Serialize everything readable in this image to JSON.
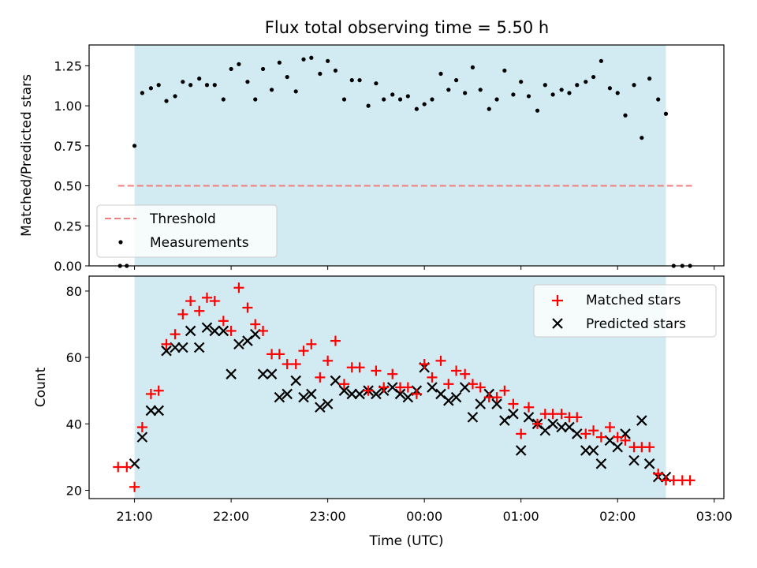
{
  "title": "Flux total observing time = 5.50 h",
  "chart_data": [
    {
      "type": "scatter",
      "ylabel": "Matched/Predicted stars",
      "xlabel": "",
      "xlim_hours": [
        20.53,
        27.1
      ],
      "ylim": [
        0,
        1.38
      ],
      "yticks": [
        0.0,
        0.25,
        0.5,
        0.75,
        1.0,
        1.25
      ],
      "yticklabels": [
        "0.00",
        "0.25",
        "0.50",
        "0.75",
        "1.00",
        "1.25"
      ],
      "shaded_span_hours": [
        21.0,
        26.5
      ],
      "shade_color": "#add8e6",
      "legend_position": "lower-left",
      "threshold": {
        "name": "Threshold",
        "value": 0.5,
        "x_range_hours": [
          20.83,
          26.77
        ],
        "color": "#f08080",
        "style": "dashed"
      },
      "measurements": {
        "name": "Measurements",
        "color": "#000000",
        "x_hours": [
          20.85,
          20.92,
          21.0,
          21.08,
          21.17,
          21.25,
          21.33,
          21.42,
          21.5,
          21.58,
          21.67,
          21.75,
          21.83,
          21.92,
          22.0,
          22.08,
          22.17,
          22.25,
          22.33,
          22.42,
          22.5,
          22.58,
          22.67,
          22.75,
          22.83,
          22.92,
          23.0,
          23.08,
          23.17,
          23.25,
          23.33,
          23.42,
          23.5,
          23.58,
          23.67,
          23.75,
          23.83,
          23.92,
          24.0,
          24.08,
          24.17,
          24.25,
          24.33,
          24.42,
          24.5,
          24.58,
          24.67,
          24.75,
          24.83,
          24.92,
          25.0,
          25.08,
          25.17,
          25.25,
          25.33,
          25.42,
          25.5,
          25.58,
          25.67,
          25.75,
          25.83,
          25.92,
          26.0,
          26.08,
          26.17,
          26.25,
          26.33,
          26.42,
          26.5,
          26.58,
          26.67,
          26.75
        ],
        "y": [
          0.0,
          0.0,
          0.75,
          1.08,
          1.11,
          1.13,
          1.03,
          1.06,
          1.15,
          1.13,
          1.17,
          1.13,
          1.13,
          1.04,
          1.23,
          1.26,
          1.15,
          1.04,
          1.23,
          1.1,
          1.27,
          1.18,
          1.09,
          1.29,
          1.3,
          1.2,
          1.28,
          1.22,
          1.04,
          1.16,
          1.16,
          1.0,
          1.14,
          1.04,
          1.07,
          1.04,
          1.06,
          0.98,
          1.01,
          1.04,
          1.2,
          1.1,
          1.16,
          1.08,
          1.24,
          1.1,
          0.98,
          1.04,
          1.22,
          1.07,
          1.15,
          1.06,
          0.97,
          1.13,
          1.07,
          1.1,
          1.08,
          1.13,
          1.15,
          1.18,
          1.28,
          1.11,
          1.08,
          0.94,
          1.13,
          0.8,
          1.17,
          1.04,
          0.95,
          0.0,
          0.0,
          0.0
        ]
      }
    },
    {
      "type": "scatter",
      "ylabel": "Count",
      "xlabel": "Time (UTC)",
      "xlim_hours": [
        20.53,
        27.1
      ],
      "ylim": [
        17.5,
        84.5
      ],
      "yticks": [
        20,
        40,
        60,
        80
      ],
      "yticklabels": [
        "20",
        "40",
        "60",
        "80"
      ],
      "xticks_hours": [
        21,
        22,
        23,
        24,
        25,
        26,
        27
      ],
      "xticklabels": [
        "21:00",
        "22:00",
        "23:00",
        "00:00",
        "01:00",
        "02:00",
        "03:00"
      ],
      "shaded_span_hours": [
        21.0,
        26.5
      ],
      "shade_color": "#add8e6",
      "legend_position": "top-right",
      "series": [
        {
          "name": "Matched stars",
          "marker": "plus",
          "color": "#ff0000",
          "x_hours": [
            20.83,
            20.92,
            21.0,
            21.08,
            21.17,
            21.25,
            21.33,
            21.42,
            21.5,
            21.58,
            21.67,
            21.75,
            21.83,
            21.92,
            22.0,
            22.08,
            22.17,
            22.25,
            22.33,
            22.42,
            22.5,
            22.58,
            22.67,
            22.75,
            22.83,
            22.92,
            23.0,
            23.08,
            23.17,
            23.25,
            23.33,
            23.42,
            23.5,
            23.58,
            23.67,
            23.75,
            23.83,
            23.92,
            24.0,
            24.08,
            24.17,
            24.25,
            24.33,
            24.42,
            24.5,
            24.58,
            24.67,
            24.75,
            24.83,
            24.92,
            25.0,
            25.08,
            25.17,
            25.25,
            25.33,
            25.42,
            25.5,
            25.58,
            25.67,
            25.75,
            25.83,
            25.92,
            26.0,
            26.08,
            26.17,
            26.25,
            26.33,
            26.42,
            26.5,
            26.58,
            26.67,
            26.75
          ],
          "y": [
            27,
            27,
            21,
            39,
            49,
            50,
            64,
            67,
            73,
            77,
            74,
            78,
            77,
            71,
            68,
            81,
            75,
            70,
            68,
            61,
            61,
            58,
            58,
            62,
            64,
            54,
            59,
            65,
            52,
            57,
            57,
            50,
            56,
            51,
            55,
            51,
            51,
            49,
            58,
            54,
            59,
            52,
            56,
            55,
            52,
            51,
            48,
            48,
            50,
            46,
            37,
            45,
            40,
            43,
            43,
            43,
            42,
            42,
            37,
            38,
            36,
            39,
            36,
            35,
            33,
            33,
            33,
            25,
            23,
            23,
            23,
            23
          ]
        },
        {
          "name": "Predicted stars",
          "marker": "x",
          "color": "#000000",
          "x_hours": [
            21.0,
            21.08,
            21.17,
            21.25,
            21.33,
            21.42,
            21.5,
            21.58,
            21.67,
            21.75,
            21.83,
            21.92,
            22.0,
            22.08,
            22.17,
            22.25,
            22.33,
            22.42,
            22.5,
            22.58,
            22.67,
            22.75,
            22.83,
            22.92,
            23.0,
            23.08,
            23.17,
            23.25,
            23.33,
            23.42,
            23.5,
            23.58,
            23.67,
            23.75,
            23.83,
            23.92,
            24.0,
            24.08,
            24.17,
            24.25,
            24.33,
            24.42,
            24.5,
            24.58,
            24.67,
            24.75,
            24.83,
            24.92,
            25.0,
            25.08,
            25.17,
            25.25,
            25.33,
            25.42,
            25.5,
            25.58,
            25.67,
            25.75,
            25.83,
            25.92,
            26.0,
            26.08,
            26.17,
            26.25,
            26.33,
            26.42,
            26.5
          ],
          "y": [
            28,
            36,
            44,
            44,
            62,
            63,
            63,
            68,
            63,
            69,
            68,
            68,
            55,
            64,
            65,
            67,
            55,
            55,
            48,
            49,
            53,
            48,
            49,
            45,
            46,
            53,
            50,
            49,
            49,
            50,
            49,
            50,
            51,
            49,
            48,
            50,
            57,
            51,
            49,
            47,
            48,
            51,
            42,
            46,
            49,
            46,
            41,
            43,
            32,
            42,
            40,
            38,
            40,
            39,
            39,
            37,
            32,
            32,
            28,
            35,
            33,
            37,
            29,
            41,
            28,
            24,
            24
          ]
        }
      ]
    }
  ]
}
